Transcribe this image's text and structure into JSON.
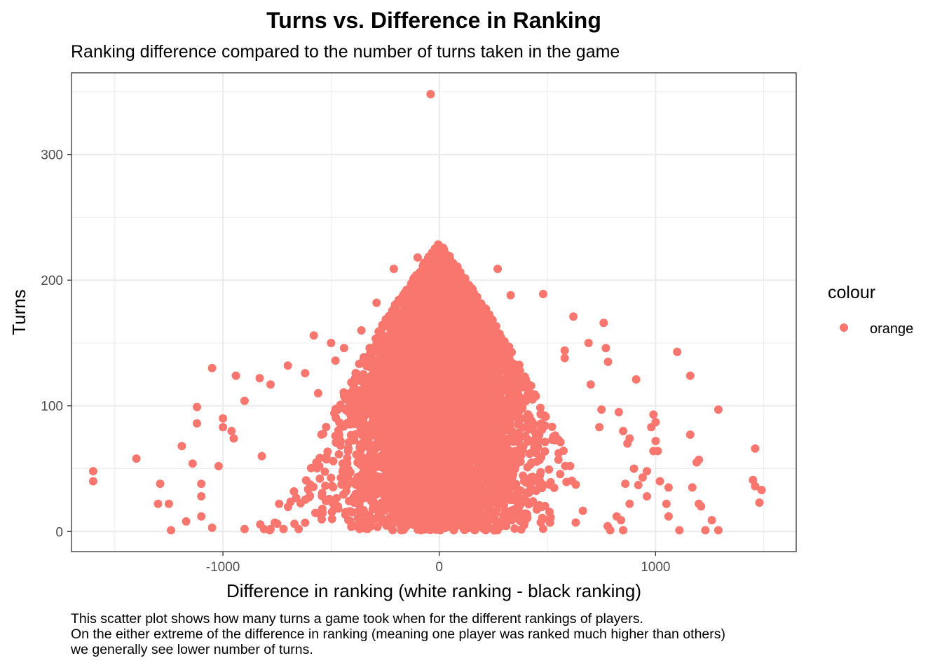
{
  "chart_data": {
    "type": "scatter",
    "title": "Turns vs. Difference in Ranking",
    "subtitle": "Ranking difference compared to the number of turns taken in the game",
    "xlabel": "Difference in ranking (white ranking - black ranking)",
    "ylabel": "Turns",
    "xlim": [
      -1700,
      1650
    ],
    "ylim": [
      -16,
      365
    ],
    "x_ticks": [
      -1000,
      0,
      1000
    ],
    "x_tick_labels": [
      "-1000",
      "0",
      "1000"
    ],
    "y_ticks": [
      0,
      100,
      200,
      300
    ],
    "y_tick_labels": [
      "0",
      "100",
      "200",
      "300"
    ],
    "grid": true,
    "legend": {
      "title": "colour",
      "position": "right",
      "entries": [
        {
          "label": "orange",
          "color": "#F8766D"
        }
      ]
    },
    "series": [
      {
        "name": "orange",
        "color": "#F8766D",
        "points": [
          [
            -1600,
            48
          ],
          [
            -1600,
            40
          ],
          [
            -1400,
            58
          ],
          [
            -1290,
            38
          ],
          [
            -1300,
            22
          ],
          [
            -1250,
            22
          ],
          [
            -1240,
            1
          ],
          [
            -1170,
            8
          ],
          [
            -1190,
            68
          ],
          [
            -1140,
            54
          ],
          [
            -1120,
            99
          ],
          [
            -1120,
            86
          ],
          [
            -1100,
            38
          ],
          [
            -1100,
            28
          ],
          [
            -1100,
            12
          ],
          [
            -1050,
            3
          ],
          [
            -1050,
            130
          ],
          [
            -1020,
            52
          ],
          [
            -1000,
            83
          ],
          [
            -1000,
            90
          ],
          [
            -960,
            80
          ],
          [
            -950,
            74
          ],
          [
            -940,
            124
          ],
          [
            -900,
            104
          ],
          [
            -40,
            348
          ],
          [
            0,
            222
          ],
          [
            30,
            209
          ],
          [
            -100,
            218
          ],
          [
            -210,
            209
          ],
          [
            270,
            209
          ],
          [
            480,
            189
          ],
          [
            620,
            171
          ],
          [
            760,
            166
          ],
          [
            -290,
            182
          ],
          [
            330,
            188
          ],
          [
            -360,
            160
          ],
          [
            -580,
            156
          ],
          [
            -500,
            150
          ],
          [
            -480,
            136
          ],
          [
            -440,
            146
          ],
          [
            690,
            150
          ],
          [
            580,
            144
          ],
          [
            580,
            138
          ],
          [
            770,
            146
          ],
          [
            780,
            135
          ],
          [
            700,
            117
          ],
          [
            910,
            121
          ],
          [
            1100,
            143
          ],
          [
            1160,
            124
          ],
          [
            1290,
            97
          ],
          [
            1160,
            77
          ],
          [
            1460,
            66
          ],
          [
            1200,
            57
          ],
          [
            1190,
            55
          ],
          [
            1450,
            41
          ],
          [
            1460,
            36
          ],
          [
            1490,
            33
          ],
          [
            1480,
            23
          ],
          [
            1230,
            1
          ],
          [
            1260,
            9
          ],
          [
            1290,
            1
          ],
          [
            1110,
            1
          ],
          [
            1170,
            35
          ],
          [
            1200,
            22
          ],
          [
            1210,
            20
          ],
          [
            980,
            83
          ],
          [
            990,
            93
          ],
          [
            1000,
            87
          ],
          [
            1000,
            72
          ],
          [
            1010,
            64
          ],
          [
            990,
            64
          ],
          [
            1060,
            35
          ],
          [
            1050,
            22
          ],
          [
            1060,
            12
          ],
          [
            960,
            48
          ],
          [
            940,
            43
          ],
          [
            1020,
            40
          ],
          [
            880,
            22
          ],
          [
            860,
            38
          ],
          [
            850,
            1
          ],
          [
            840,
            9
          ],
          [
            820,
            12
          ],
          [
            790,
            1
          ],
          [
            830,
            95
          ],
          [
            850,
            80
          ],
          [
            880,
            74
          ],
          [
            870,
            70
          ],
          [
            750,
            97
          ],
          [
            740,
            83
          ],
          [
            900,
            50
          ],
          [
            920,
            37
          ],
          [
            960,
            28
          ],
          [
            -900,
            2
          ],
          [
            -810,
            2
          ],
          [
            -780,
            2
          ],
          [
            -720,
            2
          ],
          [
            -650,
            2
          ],
          [
            -620,
            7
          ],
          [
            -760,
            7
          ],
          [
            -740,
            22
          ],
          [
            -820,
            60
          ],
          [
            -830,
            122
          ],
          [
            -780,
            117
          ],
          [
            -700,
            132
          ],
          [
            -620,
            126
          ],
          [
            -560,
            110
          ]
        ],
        "cloud": {
          "count": 5200,
          "x_center": 0,
          "x_spread": 200,
          "turns_max": 230,
          "turns_min": 1
        }
      }
    ]
  },
  "caption": {
    "lines": [
      "This scatter plot shows how many turns a game took when for the different rankings of players.",
      "On the either extreme of the difference in ranking (meaning one player was ranked much higher than others)",
      "we generally see lower number of turns."
    ]
  }
}
